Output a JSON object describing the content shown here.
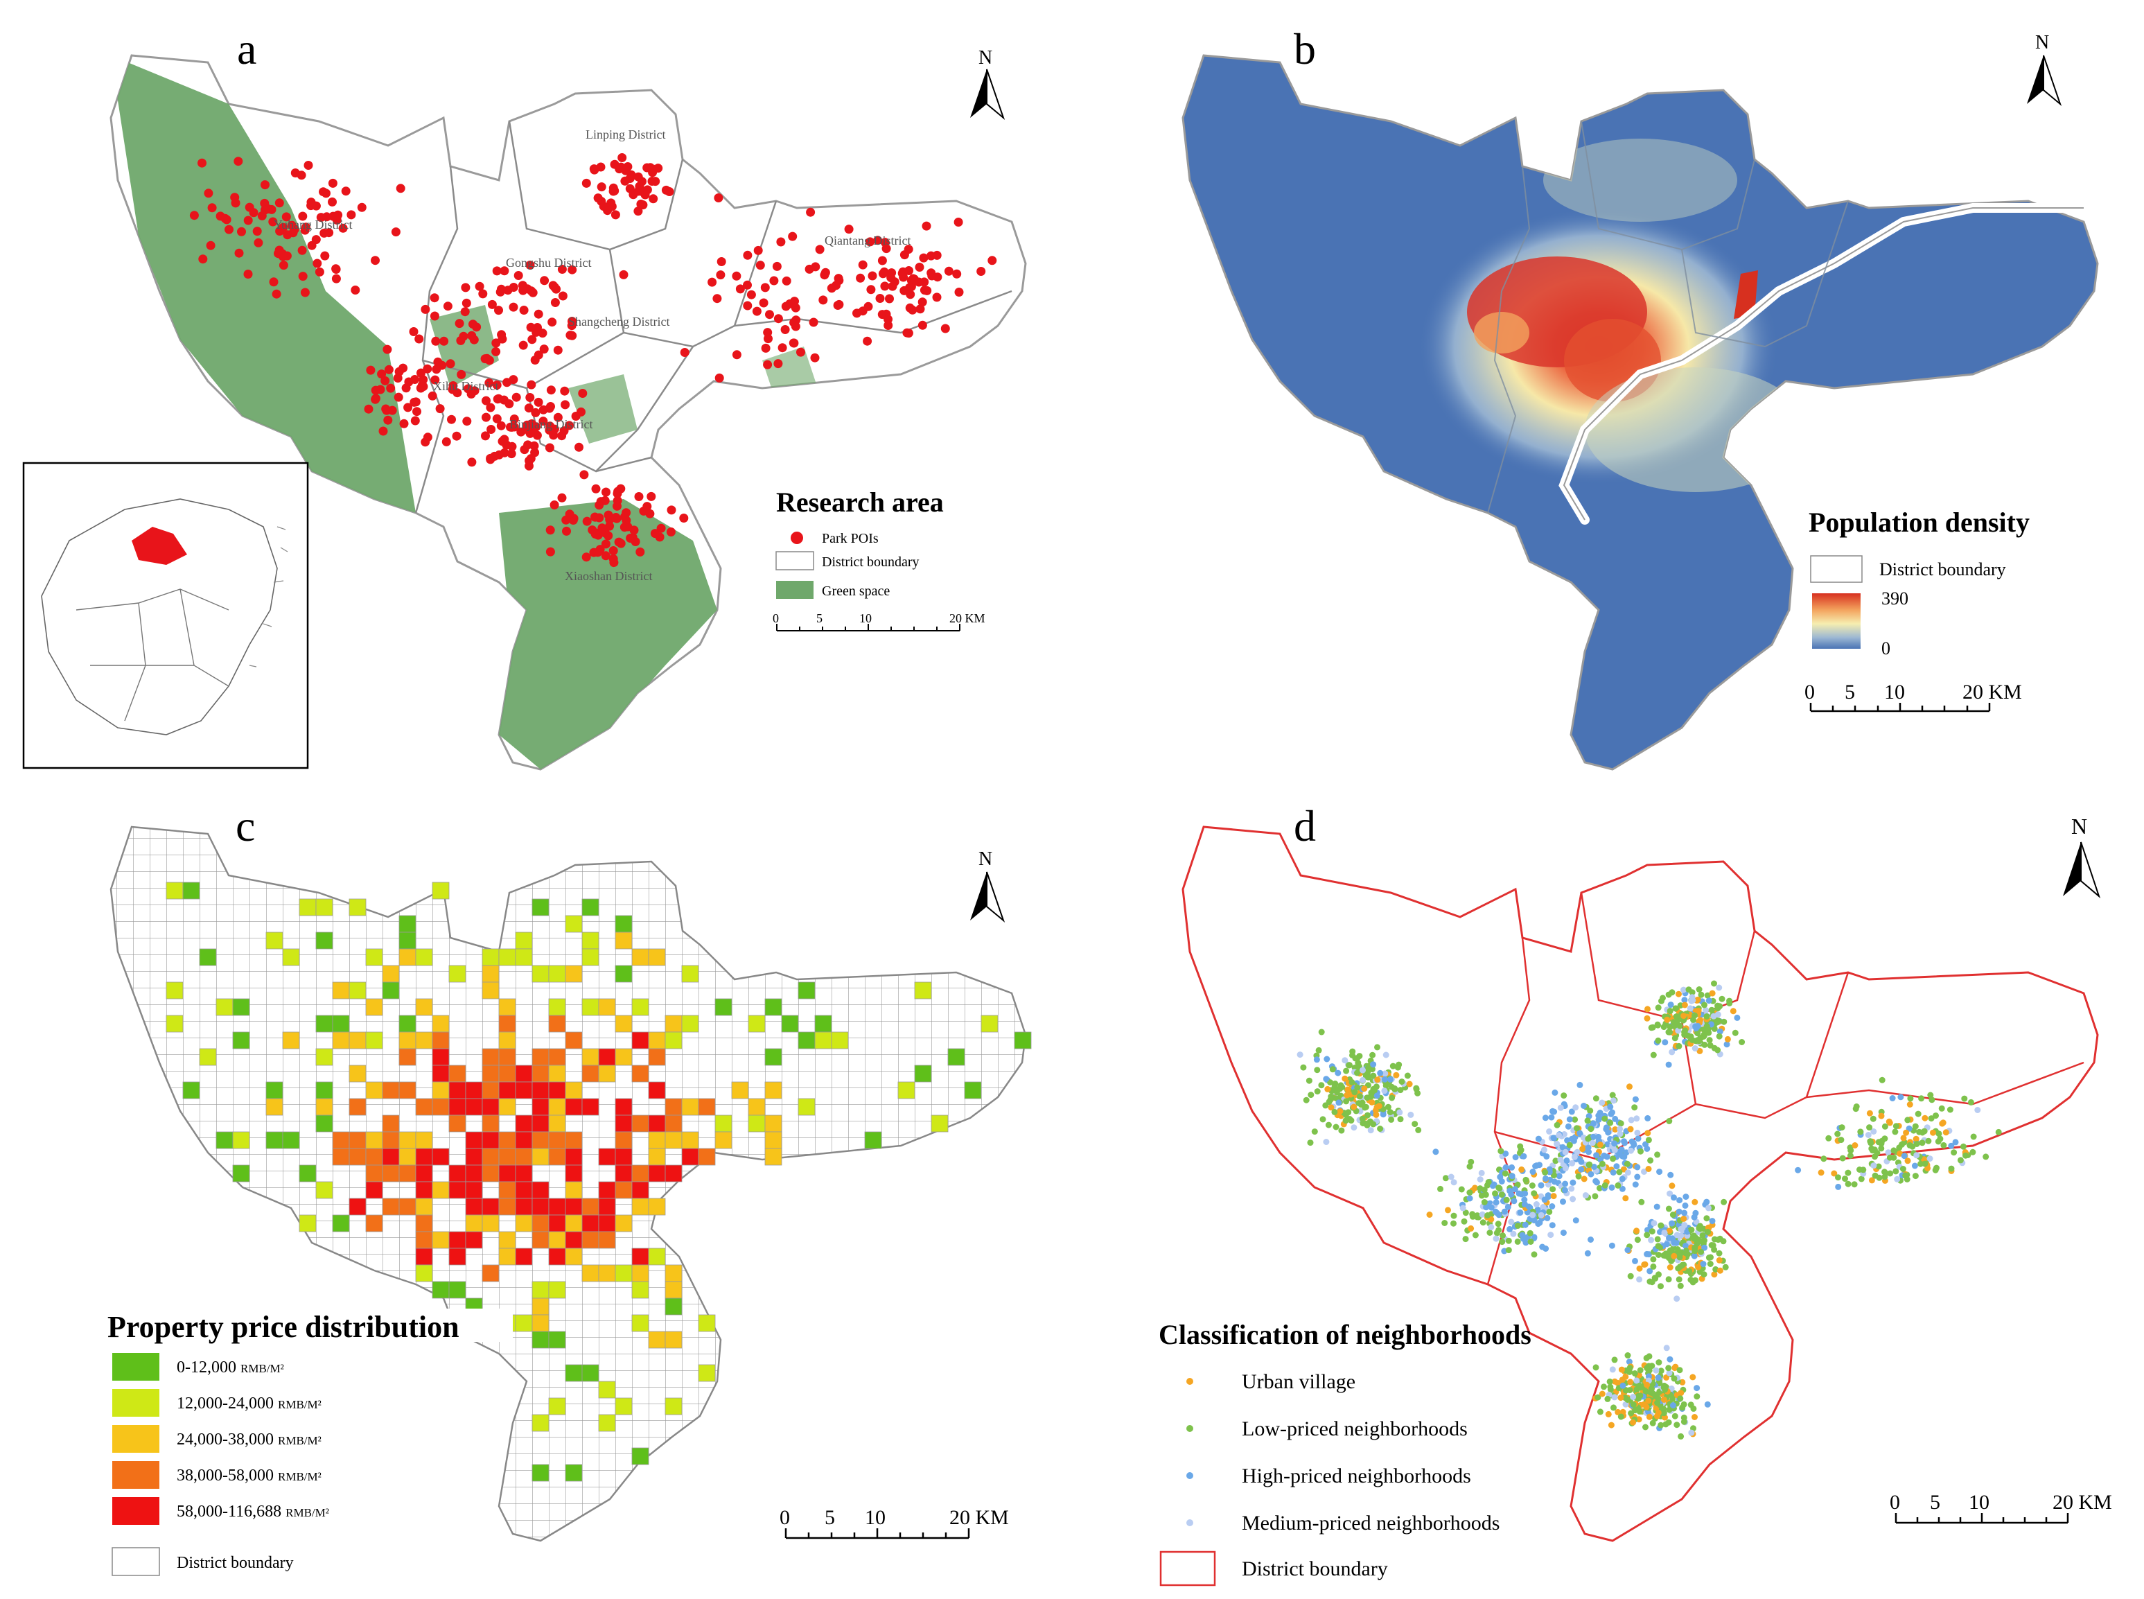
{
  "panels": {
    "a": {
      "letter": "a",
      "legend_title": "Research area",
      "legend_items": [
        "Park POIs",
        "District boundary",
        "Green space"
      ],
      "district_labels": [
        "Linping District",
        "Yuhang District",
        "Gongshu District",
        "Qiantang District",
        "Shangcheng District",
        "Xihu District",
        "Binjiang District",
        "Xiaoshan District"
      ],
      "scale_ticks": [
        "0",
        "5",
        "10",
        "20 KM"
      ],
      "north": "N",
      "colors": {
        "green_space": "#6fa86b",
        "poi": "#e8141a",
        "boundary": "#9a9a9a",
        "inset_region": "#e8141a"
      }
    },
    "b": {
      "letter": "b",
      "legend_title": "Population density",
      "legend_boundary": "District boundary",
      "ramp_max": "390",
      "ramp_min": "0",
      "scale_ticks": [
        "0",
        "5",
        "10",
        "20 KM"
      ],
      "north": "N",
      "colors": {
        "low": "#4a73b4",
        "mid": "#f6eeb0",
        "high": "#d7301f"
      }
    },
    "c": {
      "letter": "c",
      "legend_title": "Property price distribution",
      "legend_items": [
        "0-12,000",
        "12,000-24,000",
        "24,000-38,000",
        "38,000-58,000",
        "58,000-116,688"
      ],
      "legend_unit": "RMB/M²",
      "legend_boundary": "District boundary",
      "scale_ticks": [
        "0",
        "5",
        "10",
        "20 KM"
      ],
      "north": "N",
      "colors": [
        "#5fbf1a",
        "#cfe816",
        "#f7c41a",
        "#f27018",
        "#ee1212"
      ]
    },
    "d": {
      "letter": "d",
      "legend_title": "Classification of neighborhoods",
      "legend_items": [
        "Urban village",
        "Low-priced neighborhoods",
        "High-priced neighborhoods",
        "Medium-priced neighborhoods"
      ],
      "legend_boundary": "District boundary",
      "scale_ticks": [
        "0",
        "5",
        "10",
        "20 KM"
      ],
      "north": "N",
      "colors": [
        "#f5a623",
        "#7ec24c",
        "#6aa8e8",
        "#b9cdf2"
      ],
      "boundary_color": "#e03030"
    }
  }
}
